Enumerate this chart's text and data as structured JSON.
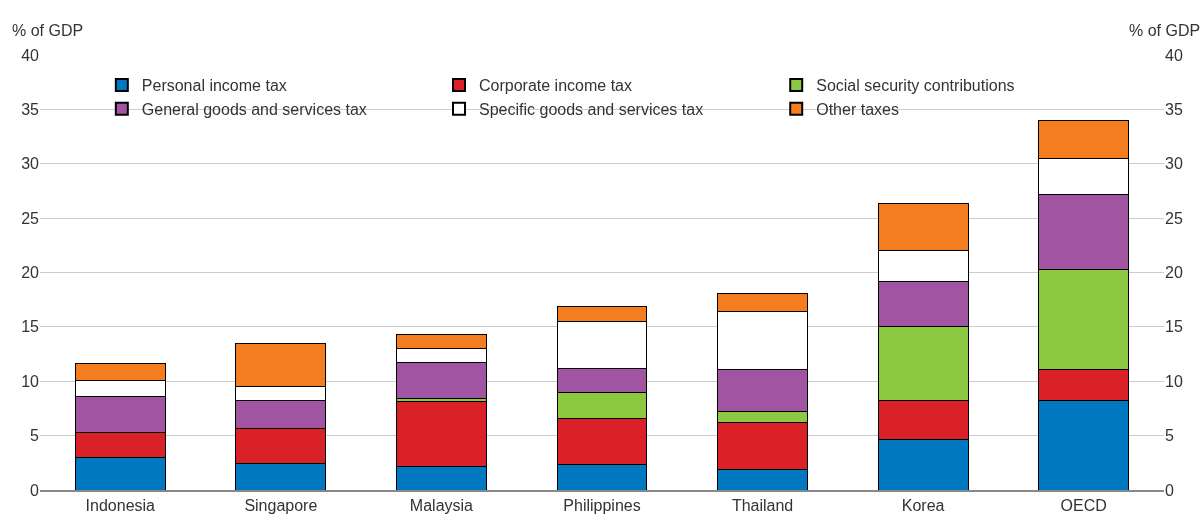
{
  "chart_data": {
    "type": "bar",
    "stacked": true,
    "ylabel": "% of GDP",
    "y2label": "% of GDP",
    "categories": [
      "Indonesia",
      "Singapore",
      "Malaysia",
      "Philippines",
      "Thailand",
      "Korea",
      "OECD"
    ],
    "series": [
      {
        "name": "Personal income tax",
        "color": "#0079c1",
        "values": [
          3.0,
          2.4,
          2.2,
          2.3,
          1.9,
          4.6,
          8.2
        ]
      },
      {
        "name": "Corporate income tax",
        "color": "#da2128",
        "values": [
          2.3,
          3.3,
          5.9,
          4.3,
          4.3,
          3.6,
          2.9
        ]
      },
      {
        "name": "Social security contributions",
        "color": "#8cc841",
        "values": [
          0,
          0,
          0.3,
          2.4,
          1.0,
          6.8,
          9.2
        ]
      },
      {
        "name": "General goods and services tax",
        "color": "#a154a1",
        "values": [
          3.3,
          2.5,
          3.3,
          2.2,
          3.9,
          4.2,
          6.9
        ]
      },
      {
        "name": "Specific goods and services tax",
        "color": "#ffffff",
        "values": [
          1.5,
          1.3,
          1.3,
          4.3,
          5.3,
          2.8,
          3.3
        ]
      },
      {
        "name": "Other taxes",
        "color": "#f47d20",
        "values": [
          1.5,
          4.0,
          1.3,
          1.4,
          1.7,
          4.3,
          3.5
        ]
      }
    ],
    "ylim": [
      0,
      40
    ],
    "yticks": [
      0,
      5,
      10,
      15,
      20,
      25,
      30,
      35,
      40
    ],
    "y2lim": [
      0,
      40
    ],
    "y2ticks": [
      0,
      5,
      10,
      15,
      20,
      25,
      30,
      35,
      40
    ],
    "grid": "y",
    "legend": "top left"
  }
}
